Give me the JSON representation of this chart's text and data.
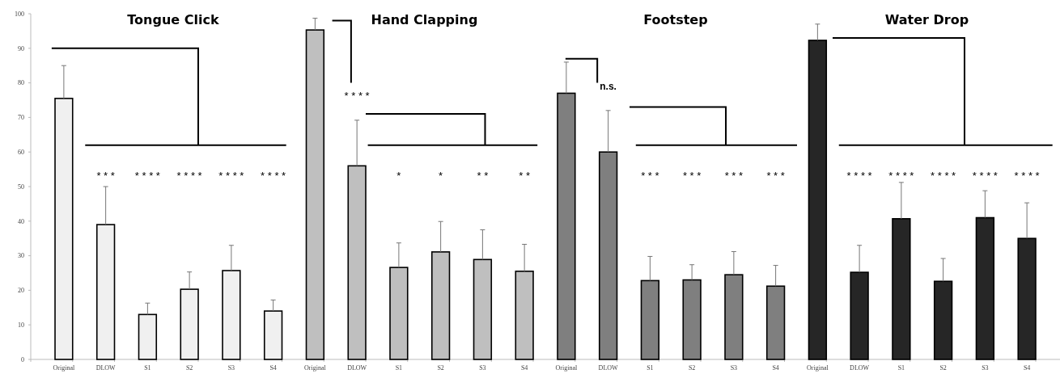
{
  "chart_data": {
    "type": "bar",
    "categories": [
      "Original",
      "DLOW",
      "S1",
      "S2",
      "S3",
      "S4",
      "Original",
      "DLOW",
      "S1",
      "S2",
      "S3",
      "S4",
      "Original",
      "DLOW",
      "S1",
      "S2",
      "S3",
      "S4",
      "Original",
      "DLOW",
      "S1",
      "S2",
      "S3",
      "S4"
    ],
    "values": [
      75.5,
      39,
      13,
      20.3,
      25.7,
      14,
      95.3,
      56,
      26.6,
      31.1,
      28.9,
      25.5,
      77,
      60,
      22.8,
      23,
      24.5,
      21.2,
      92.3,
      25.2,
      40.7,
      22.6,
      41,
      35
    ],
    "errors": [
      [
        75.5,
        85
      ],
      [
        39,
        50
      ],
      [
        13,
        16.3
      ],
      [
        20.3,
        25.3
      ],
      [
        25.7,
        33
      ],
      [
        14,
        17.2
      ],
      [
        95.3,
        98.7
      ],
      [
        56,
        69.2
      ],
      [
        26.6,
        33.7
      ],
      [
        31.1,
        39.9
      ],
      [
        28.9,
        37.5
      ],
      [
        25.5,
        33.3
      ],
      [
        77,
        86
      ],
      [
        60,
        72
      ],
      [
        22.8,
        29.8
      ],
      [
        23,
        27.4
      ],
      [
        24.5,
        31.2
      ],
      [
        21.2,
        27.2
      ],
      [
        92.3,
        97
      ],
      [
        25.2,
        33
      ],
      [
        40.7,
        51.2
      ],
      [
        22.6,
        29.2
      ],
      [
        41,
        48.8
      ],
      [
        35,
        45.3
      ]
    ],
    "colors": [
      "#f0f0f0",
      "#f0f0f0",
      "#f0f0f0",
      "#f0f0f0",
      "#f0f0f0",
      "#f0f0f0",
      "#bfbfbf",
      "#bfbfbf",
      "#bfbfbf",
      "#bfbfbf",
      "#bfbfbf",
      "#bfbfbf",
      "#7f7f7f",
      "#7f7f7f",
      "#7f7f7f",
      "#7f7f7f",
      "#7f7f7f",
      "#7f7f7f",
      "#262626",
      "#262626",
      "#262626",
      "#262626",
      "#262626",
      "#262626"
    ],
    "ylim": [
      0,
      100
    ],
    "yticks": [
      0,
      10,
      20,
      30,
      40,
      50,
      60,
      70,
      80,
      90,
      100
    ],
    "grid": false,
    "annotations": [
      "Tongue Click",
      "Hand Clapping",
      "Footstep",
      "Water Drop",
      "* * *",
      "* * * *",
      "* * * *",
      "* * * *",
      "* * * *",
      "* * * *",
      "*",
      "*",
      "* *",
      "* *",
      "n.s.",
      "* * *",
      "* * *",
      "* * *",
      "* * *",
      "* * * *",
      "* * * *",
      "* * * *",
      "* * * *",
      "* * * *"
    ]
  }
}
